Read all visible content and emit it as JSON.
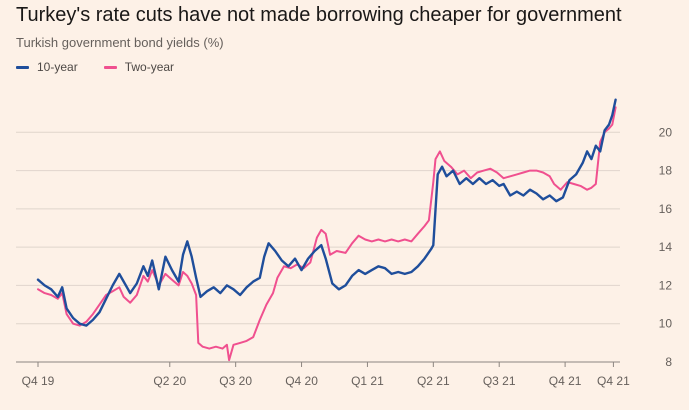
{
  "chart_data": {
    "type": "line",
    "title": "Turkey's rate cuts have not made borrowing cheaper for government",
    "subtitle": "Turkish government bond yields (%)",
    "xlabel": "",
    "ylabel": "",
    "x_ticks": [
      "Q4 19",
      "Q2 20",
      "Q3 20",
      "Q4 20",
      "Q1 21",
      "Q2 21",
      "Q3 21",
      "Q4 21",
      "Q4 21"
    ],
    "x_tick_positions": [
      0,
      6,
      9,
      12,
      15,
      18,
      21,
      24,
      26.2
    ],
    "xlim": [
      0,
      26.5
    ],
    "ylim": [
      8,
      22
    ],
    "y_ticks": [
      8,
      10,
      12,
      14,
      16,
      18,
      20
    ],
    "grid": true,
    "legend": "top-left",
    "colors": {
      "ten_year": "#1f4e9b",
      "two_year": "#f0508f",
      "grid": "#e0d5cc",
      "axis": "#8c8580"
    },
    "series": [
      {
        "name": "10-year",
        "color": "#1f4e9b",
        "points": [
          [
            0,
            12.3
          ],
          [
            0.3,
            12.0
          ],
          [
            0.6,
            11.8
          ],
          [
            0.9,
            11.4
          ],
          [
            1.1,
            11.9
          ],
          [
            1.3,
            10.8
          ],
          [
            1.6,
            10.3
          ],
          [
            1.9,
            10.0
          ],
          [
            2.2,
            9.9
          ],
          [
            2.5,
            10.2
          ],
          [
            2.8,
            10.6
          ],
          [
            3.1,
            11.3
          ],
          [
            3.4,
            12.0
          ],
          [
            3.7,
            12.6
          ],
          [
            3.9,
            12.2
          ],
          [
            4.2,
            11.6
          ],
          [
            4.5,
            12.1
          ],
          [
            4.8,
            13.0
          ],
          [
            5.0,
            12.5
          ],
          [
            5.2,
            13.3
          ],
          [
            5.5,
            11.8
          ],
          [
            5.8,
            13.5
          ],
          [
            6.1,
            12.8
          ],
          [
            6.4,
            12.2
          ],
          [
            6.6,
            13.6
          ],
          [
            6.8,
            14.3
          ],
          [
            7.0,
            13.5
          ],
          [
            7.2,
            12.4
          ],
          [
            7.4,
            11.4
          ],
          [
            7.7,
            11.7
          ],
          [
            8.0,
            11.9
          ],
          [
            8.3,
            11.6
          ],
          [
            8.6,
            12.0
          ],
          [
            8.9,
            11.8
          ],
          [
            9.2,
            11.5
          ],
          [
            9.5,
            11.9
          ],
          [
            9.8,
            12.2
          ],
          [
            10.1,
            12.4
          ],
          [
            10.3,
            13.5
          ],
          [
            10.5,
            14.2
          ],
          [
            10.8,
            13.8
          ],
          [
            11.1,
            13.3
          ],
          [
            11.4,
            13.0
          ],
          [
            11.7,
            13.4
          ],
          [
            12.0,
            12.8
          ],
          [
            12.3,
            13.4
          ],
          [
            12.6,
            13.8
          ],
          [
            12.9,
            14.1
          ],
          [
            13.1,
            13.4
          ],
          [
            13.4,
            12.1
          ],
          [
            13.7,
            11.8
          ],
          [
            14.0,
            12.0
          ],
          [
            14.3,
            12.5
          ],
          [
            14.6,
            12.8
          ],
          [
            14.9,
            12.6
          ],
          [
            15.2,
            12.8
          ],
          [
            15.5,
            13.0
          ],
          [
            15.8,
            12.9
          ],
          [
            16.1,
            12.6
          ],
          [
            16.4,
            12.7
          ],
          [
            16.7,
            12.6
          ],
          [
            17.0,
            12.7
          ],
          [
            17.3,
            13.0
          ],
          [
            17.6,
            13.4
          ],
          [
            17.9,
            13.9
          ],
          [
            18.0,
            14.1
          ],
          [
            18.2,
            17.8
          ],
          [
            18.4,
            18.2
          ],
          [
            18.6,
            17.7
          ],
          [
            18.9,
            18.0
          ],
          [
            19.2,
            17.3
          ],
          [
            19.5,
            17.6
          ],
          [
            19.8,
            17.3
          ],
          [
            20.1,
            17.6
          ],
          [
            20.4,
            17.3
          ],
          [
            20.7,
            17.5
          ],
          [
            21.0,
            17.2
          ],
          [
            21.2,
            17.3
          ],
          [
            21.5,
            16.7
          ],
          [
            21.8,
            16.9
          ],
          [
            22.1,
            16.7
          ],
          [
            22.4,
            17.0
          ],
          [
            22.7,
            16.8
          ],
          [
            23.0,
            16.5
          ],
          [
            23.3,
            16.7
          ],
          [
            23.6,
            16.4
          ],
          [
            23.9,
            16.6
          ],
          [
            24.2,
            17.5
          ],
          [
            24.5,
            17.8
          ],
          [
            24.8,
            18.4
          ],
          [
            25.0,
            19.0
          ],
          [
            25.2,
            18.6
          ],
          [
            25.4,
            19.3
          ],
          [
            25.6,
            19.0
          ],
          [
            25.8,
            20.1
          ],
          [
            26.0,
            20.4
          ],
          [
            26.15,
            20.9
          ],
          [
            26.3,
            21.7
          ]
        ]
      },
      {
        "name": "Two-year",
        "color": "#f0508f",
        "points": [
          [
            0,
            11.8
          ],
          [
            0.3,
            11.6
          ],
          [
            0.6,
            11.5
          ],
          [
            0.9,
            11.3
          ],
          [
            1.1,
            11.6
          ],
          [
            1.3,
            10.5
          ],
          [
            1.6,
            10.0
          ],
          [
            1.9,
            9.9
          ],
          [
            2.2,
            10.1
          ],
          [
            2.5,
            10.5
          ],
          [
            2.8,
            11.0
          ],
          [
            3.1,
            11.5
          ],
          [
            3.4,
            11.7
          ],
          [
            3.7,
            11.9
          ],
          [
            3.9,
            11.4
          ],
          [
            4.2,
            11.1
          ],
          [
            4.5,
            11.5
          ],
          [
            4.8,
            12.5
          ],
          [
            5.0,
            12.2
          ],
          [
            5.2,
            12.8
          ],
          [
            5.5,
            12.0
          ],
          [
            5.8,
            12.6
          ],
          [
            6.1,
            12.3
          ],
          [
            6.4,
            12.0
          ],
          [
            6.6,
            12.7
          ],
          [
            6.8,
            12.5
          ],
          [
            7.0,
            12.1
          ],
          [
            7.2,
            11.5
          ],
          [
            7.3,
            9.0
          ],
          [
            7.5,
            8.8
          ],
          [
            7.8,
            8.7
          ],
          [
            8.1,
            8.8
          ],
          [
            8.4,
            8.7
          ],
          [
            8.6,
            8.9
          ],
          [
            8.7,
            8.1
          ],
          [
            8.9,
            8.9
          ],
          [
            9.2,
            9.0
          ],
          [
            9.5,
            9.1
          ],
          [
            9.8,
            9.3
          ],
          [
            10.1,
            10.2
          ],
          [
            10.4,
            11.0
          ],
          [
            10.7,
            11.6
          ],
          [
            10.9,
            12.4
          ],
          [
            11.2,
            13.0
          ],
          [
            11.5,
            12.9
          ],
          [
            11.8,
            13.1
          ],
          [
            12.1,
            12.9
          ],
          [
            12.4,
            13.2
          ],
          [
            12.7,
            14.5
          ],
          [
            12.9,
            14.9
          ],
          [
            13.1,
            14.7
          ],
          [
            13.3,
            13.6
          ],
          [
            13.6,
            13.8
          ],
          [
            14.0,
            13.7
          ],
          [
            14.3,
            14.2
          ],
          [
            14.6,
            14.6
          ],
          [
            14.9,
            14.4
          ],
          [
            15.2,
            14.3
          ],
          [
            15.5,
            14.4
          ],
          [
            15.8,
            14.3
          ],
          [
            16.1,
            14.4
          ],
          [
            16.4,
            14.3
          ],
          [
            16.7,
            14.4
          ],
          [
            17.0,
            14.3
          ],
          [
            17.3,
            14.7
          ],
          [
            17.6,
            15.1
          ],
          [
            17.8,
            15.4
          ],
          [
            18.0,
            17.4
          ],
          [
            18.1,
            18.6
          ],
          [
            18.3,
            19.0
          ],
          [
            18.5,
            18.5
          ],
          [
            18.8,
            18.2
          ],
          [
            19.1,
            17.8
          ],
          [
            19.4,
            18.0
          ],
          [
            19.7,
            17.6
          ],
          [
            20.0,
            17.9
          ],
          [
            20.3,
            18.0
          ],
          [
            20.6,
            18.1
          ],
          [
            20.9,
            17.9
          ],
          [
            21.2,
            17.6
          ],
          [
            21.5,
            17.7
          ],
          [
            21.8,
            17.8
          ],
          [
            22.1,
            17.9
          ],
          [
            22.4,
            18.0
          ],
          [
            22.7,
            18.0
          ],
          [
            23.0,
            17.9
          ],
          [
            23.3,
            17.7
          ],
          [
            23.5,
            17.3
          ],
          [
            23.8,
            17.0
          ],
          [
            24.1,
            17.4
          ],
          [
            24.4,
            17.3
          ],
          [
            24.7,
            17.2
          ],
          [
            25.0,
            17.0
          ],
          [
            25.2,
            17.1
          ],
          [
            25.4,
            17.3
          ],
          [
            25.6,
            19.5
          ],
          [
            25.8,
            20.0
          ],
          [
            26.0,
            20.2
          ],
          [
            26.15,
            20.4
          ],
          [
            26.3,
            21.3
          ]
        ]
      }
    ]
  }
}
